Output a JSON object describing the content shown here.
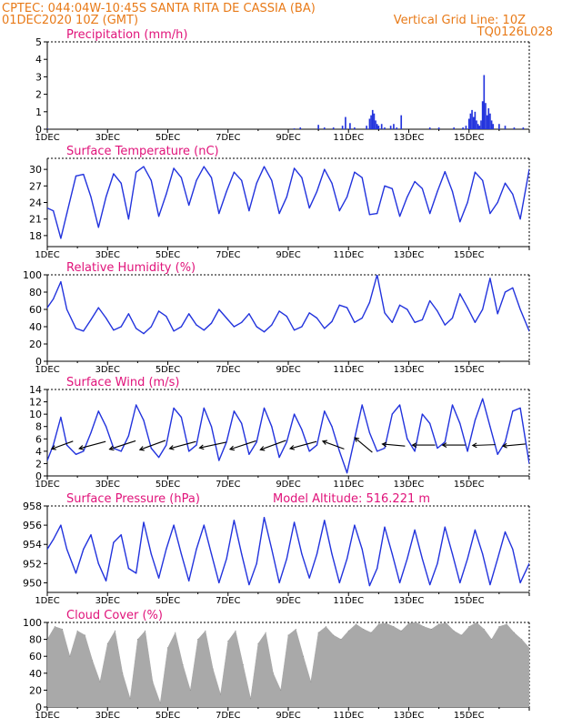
{
  "header": {
    "line1": "CPTEC:   044:04W-10:45S   SANTA RITA DE CASSIA (BA)",
    "line2_left": "01DEC2020 10Z (GMT)",
    "line2_right": "Vertical Grid Line: 10Z",
    "line3_right": "TQ0126L028"
  },
  "colors": {
    "header": "#e87a18",
    "panel_title": "#e0137a",
    "series": "#2233dd",
    "cloud_fill": "#a9a9a9",
    "wind_arrow": "#000000"
  },
  "chart_data": [
    {
      "type": "bar",
      "title": "Precipitation (mm/h)",
      "ylim": [
        0,
        5
      ],
      "yticks": [
        "0",
        "1",
        "2",
        "3",
        "4",
        "5"
      ],
      "x_ticks": [
        "1DEC",
        "3DEC",
        "5DEC",
        "7DEC",
        "9DEC",
        "11DEC",
        "13DEC",
        "15DEC"
      ],
      "x": [
        0.0,
        8.2,
        8.4,
        9.0,
        9.2,
        9.5,
        9.8,
        9.9,
        10.05,
        10.2,
        10.6,
        10.7,
        10.75,
        10.8,
        10.85,
        10.9,
        10.95,
        11.0,
        11.1,
        11.2,
        11.4,
        11.5,
        11.6,
        11.75,
        12.7,
        13.0,
        13.5,
        13.8,
        13.9,
        14.0,
        14.05,
        14.1,
        14.15,
        14.2,
        14.25,
        14.3,
        14.35,
        14.4,
        14.45,
        14.5,
        14.55,
        14.6,
        14.65,
        14.7,
        14.75,
        14.8,
        15.0,
        15.2,
        15.5,
        15.8
      ],
      "values": [
        0.05,
        0.05,
        0.1,
        0.25,
        0.1,
        0.1,
        0.2,
        0.7,
        0.35,
        0.1,
        0.2,
        0.6,
        0.8,
        1.1,
        0.9,
        0.5,
        0.3,
        0.2,
        0.3,
        0.1,
        0.2,
        0.3,
        0.1,
        0.8,
        0.1,
        0.1,
        0.1,
        0.1,
        0.2,
        0.6,
        0.9,
        1.1,
        0.7,
        1.0,
        0.5,
        0.3,
        0.2,
        0.5,
        1.6,
        3.1,
        1.5,
        0.8,
        1.2,
        0.9,
        0.5,
        0.3,
        0.3,
        0.2,
        0.1,
        0.1
      ]
    },
    {
      "type": "line",
      "title": "Surface Temperature (nC)",
      "ylim": [
        16,
        32
      ],
      "yticks": [
        "18",
        "21",
        "24",
        "27",
        "30"
      ],
      "x_ticks": [
        "1DEC",
        "3DEC",
        "5DEC",
        "7DEC",
        "9DEC",
        "11DEC",
        "13DEC",
        "15DEC"
      ],
      "x": [
        0.0,
        0.2,
        0.45,
        0.65,
        0.95,
        1.2,
        1.45,
        1.7,
        1.95,
        2.2,
        2.45,
        2.7,
        2.95,
        3.2,
        3.45,
        3.7,
        3.95,
        4.2,
        4.45,
        4.7,
        4.95,
        5.2,
        5.45,
        5.7,
        5.95,
        6.2,
        6.45,
        6.7,
        6.95,
        7.2,
        7.45,
        7.7,
        7.95,
        8.2,
        8.45,
        8.7,
        8.95,
        9.2,
        9.45,
        9.7,
        9.95,
        10.2,
        10.45,
        10.7,
        10.95,
        11.2,
        11.45,
        11.7,
        11.95,
        12.2,
        12.45,
        12.7,
        12.95,
        13.2,
        13.45,
        13.7,
        13.95,
        14.2,
        14.45,
        14.7,
        14.95,
        15.2,
        15.45,
        15.7,
        16.0
      ],
      "values": [
        23.0,
        22.5,
        17.5,
        22.0,
        28.8,
        29.1,
        25.0,
        19.5,
        25.0,
        29.2,
        27.5,
        21.0,
        29.5,
        30.5,
        28.0,
        21.5,
        25.5,
        30.2,
        28.5,
        23.5,
        28.0,
        30.5,
        28.5,
        22.0,
        26.0,
        29.5,
        28.0,
        22.5,
        27.5,
        30.5,
        28.0,
        22.0,
        25.0,
        30.2,
        28.5,
        23.0,
        26.0,
        30.0,
        27.5,
        22.5,
        25.0,
        29.5,
        28.5,
        21.8,
        22.0,
        27.0,
        26.5,
        21.5,
        25.0,
        27.8,
        26.5,
        22.0,
        26.0,
        29.6,
        26.0,
        20.5,
        24.0,
        29.5,
        28.0,
        22.0,
        24.0,
        27.5,
        25.5,
        21.0,
        30.0
      ]
    },
    {
      "type": "line",
      "title": "Relative Humidity (%)",
      "ylim": [
        0,
        100
      ],
      "yticks": [
        "0",
        "20",
        "40",
        "60",
        "80",
        "100"
      ],
      "x_ticks": [
        "1DEC",
        "3DEC",
        "5DEC",
        "7DEC",
        "9DEC",
        "11DEC",
        "13DEC",
        "15DEC"
      ],
      "x": [
        0.0,
        0.2,
        0.45,
        0.65,
        0.95,
        1.2,
        1.45,
        1.7,
        1.95,
        2.2,
        2.45,
        2.7,
        2.95,
        3.2,
        3.45,
        3.7,
        3.95,
        4.2,
        4.45,
        4.7,
        4.95,
        5.2,
        5.45,
        5.7,
        5.95,
        6.2,
        6.45,
        6.7,
        6.95,
        7.2,
        7.45,
        7.7,
        7.95,
        8.2,
        8.45,
        8.7,
        8.95,
        9.2,
        9.45,
        9.7,
        9.95,
        10.2,
        10.45,
        10.7,
        10.95,
        11.2,
        11.45,
        11.7,
        11.95,
        12.2,
        12.45,
        12.7,
        12.95,
        13.2,
        13.45,
        13.7,
        13.95,
        14.2,
        14.45,
        14.7,
        14.95,
        15.2,
        15.45,
        15.7,
        16.0
      ],
      "values": [
        62.0,
        72.0,
        92.0,
        60.0,
        38.0,
        35.0,
        48.0,
        62.0,
        50.0,
        36.0,
        40.0,
        55.0,
        38.0,
        32.0,
        40.0,
        58.0,
        52.0,
        35.0,
        40.0,
        55.0,
        42.0,
        36.0,
        44.0,
        60.0,
        50.0,
        40.0,
        45.0,
        55.0,
        40.0,
        34.0,
        42.0,
        58.0,
        52.0,
        36.0,
        40.0,
        56.0,
        50.0,
        38.0,
        46.0,
        65.0,
        62.0,
        45.0,
        50.0,
        68.0,
        100.0,
        56.0,
        45.0,
        65.0,
        60.0,
        45.0,
        48.0,
        70.0,
        58.0,
        42.0,
        50.0,
        78.0,
        62.0,
        45.0,
        60.0,
        96.0,
        55.0,
        80.0,
        85.0,
        60.0,
        35.0
      ]
    },
    {
      "type": "line",
      "title": "Surface Wind (m/s)",
      "ylim": [
        0,
        14
      ],
      "yticks": [
        "0",
        "2",
        "4",
        "6",
        "8",
        "10",
        "12",
        "14"
      ],
      "x_ticks": [
        "1DEC",
        "3DEC",
        "5DEC",
        "7DEC",
        "9DEC",
        "11DEC",
        "13DEC",
        "15DEC"
      ],
      "x": [
        0.0,
        0.2,
        0.45,
        0.65,
        0.95,
        1.2,
        1.45,
        1.7,
        1.95,
        2.2,
        2.45,
        2.7,
        2.95,
        3.2,
        3.45,
        3.7,
        3.95,
        4.2,
        4.45,
        4.7,
        4.95,
        5.2,
        5.45,
        5.7,
        5.95,
        6.2,
        6.45,
        6.7,
        6.95,
        7.2,
        7.45,
        7.7,
        7.95,
        8.2,
        8.45,
        8.7,
        8.95,
        9.2,
        9.45,
        9.7,
        9.95,
        10.2,
        10.45,
        10.7,
        10.95,
        11.2,
        11.45,
        11.7,
        11.95,
        12.2,
        12.45,
        12.7,
        12.95,
        13.2,
        13.45,
        13.7,
        13.95,
        14.2,
        14.45,
        14.7,
        14.95,
        15.2,
        15.45,
        15.7,
        16.0
      ],
      "values": [
        2.5,
        5.0,
        9.5,
        5.0,
        3.5,
        4.0,
        7.0,
        10.5,
        8.0,
        4.5,
        4.0,
        6.5,
        11.5,
        9.0,
        4.5,
        3.0,
        5.0,
        11.0,
        9.5,
        4.0,
        5.0,
        11.0,
        8.0,
        2.5,
        5.5,
        10.5,
        8.5,
        3.5,
        5.5,
        11.0,
        8.0,
        3.0,
        5.5,
        10.0,
        7.5,
        4.0,
        5.0,
        10.5,
        8.0,
        4.0,
        0.5,
        6.0,
        11.5,
        7.0,
        4.0,
        4.5,
        10.0,
        11.5,
        6.0,
        4.0,
        10.0,
        8.5,
        4.5,
        5.5,
        11.5,
        8.5,
        4.0,
        9.0,
        12.5,
        8.0,
        3.5,
        5.5,
        10.5,
        11.0,
        2.0
      ]
    },
    {
      "type": "line",
      "title": "Surface Pressure (hPa)",
      "subtitle": "Model Altitude: 516.221  m",
      "ylim": [
        949,
        958
      ],
      "yticks": [
        "950",
        "952",
        "954",
        "956",
        "958"
      ],
      "x_ticks": [
        "1DEC",
        "3DEC",
        "5DEC",
        "7DEC",
        "9DEC",
        "11DEC",
        "13DEC",
        "15DEC"
      ],
      "x": [
        0.0,
        0.2,
        0.45,
        0.65,
        0.95,
        1.2,
        1.45,
        1.7,
        1.95,
        2.2,
        2.45,
        2.7,
        2.95,
        3.2,
        3.45,
        3.7,
        3.95,
        4.2,
        4.45,
        4.7,
        4.95,
        5.2,
        5.45,
        5.7,
        5.95,
        6.2,
        6.45,
        6.7,
        6.95,
        7.2,
        7.45,
        7.7,
        7.95,
        8.2,
        8.45,
        8.7,
        8.95,
        9.2,
        9.45,
        9.7,
        9.95,
        10.2,
        10.45,
        10.7,
        10.95,
        11.2,
        11.45,
        11.7,
        11.95,
        12.2,
        12.45,
        12.7,
        12.95,
        13.2,
        13.45,
        13.7,
        13.95,
        14.2,
        14.45,
        14.7,
        14.95,
        15.2,
        15.45,
        15.7,
        16.0
      ],
      "values": [
        953.5,
        954.5,
        956.0,
        953.5,
        951.0,
        953.5,
        955.0,
        952.0,
        950.2,
        954.2,
        955.0,
        951.5,
        951.0,
        956.3,
        953.0,
        950.5,
        953.5,
        956.0,
        953.0,
        950.2,
        953.5,
        956.0,
        953.0,
        950.0,
        952.5,
        956.5,
        953.0,
        949.8,
        952.0,
        956.8,
        953.5,
        950.0,
        952.5,
        956.3,
        953.0,
        950.5,
        953.0,
        956.5,
        953.0,
        950.0,
        952.5,
        956.0,
        953.5,
        949.7,
        951.5,
        955.8,
        953.0,
        950.0,
        952.5,
        955.5,
        952.5,
        949.8,
        952.0,
        955.8,
        953.0,
        950.0,
        952.5,
        955.5,
        953.0,
        949.8,
        952.5,
        955.3,
        953.5,
        950.0,
        952.0
      ]
    },
    {
      "type": "area",
      "title": "Cloud Cover (%)",
      "ylim": [
        0,
        100
      ],
      "yticks": [
        "0",
        "20",
        "40",
        "60",
        "80",
        "100"
      ],
      "x_ticks": [
        "1DEC",
        "3DEC",
        "5DEC",
        "7DEC",
        "9DEC",
        "11DEC",
        "13DEC",
        "15DEC"
      ],
      "x": [
        0.0,
        0.25,
        0.5,
        0.75,
        1.0,
        1.25,
        1.5,
        1.75,
        2.0,
        2.25,
        2.5,
        2.75,
        3.0,
        3.25,
        3.5,
        3.75,
        4.0,
        4.25,
        4.5,
        4.75,
        5.0,
        5.25,
        5.5,
        5.75,
        6.0,
        6.25,
        6.5,
        6.75,
        7.0,
        7.25,
        7.5,
        7.75,
        8.0,
        8.25,
        8.5,
        8.75,
        9.0,
        9.25,
        9.5,
        9.75,
        10.0,
        10.25,
        10.5,
        10.75,
        11.0,
        11.25,
        11.5,
        11.75,
        12.0,
        12.25,
        12.5,
        12.75,
        13.0,
        13.25,
        13.5,
        13.75,
        14.0,
        14.25,
        14.5,
        14.75,
        15.0,
        15.25,
        15.5,
        15.75,
        16.0
      ],
      "values": [
        80,
        95,
        92,
        60,
        90,
        85,
        55,
        30,
        75,
        90,
        40,
        10,
        80,
        90,
        30,
        5,
        70,
        88,
        50,
        20,
        80,
        90,
        45,
        15,
        78,
        90,
        50,
        10,
        75,
        88,
        40,
        20,
        85,
        92,
        60,
        30,
        88,
        95,
        85,
        80,
        90,
        98,
        92,
        88,
        98,
        99,
        95,
        90,
        99,
        100,
        95,
        92,
        98,
        99,
        90,
        85,
        95,
        100,
        92,
        80,
        95,
        98,
        88,
        80,
        70
      ]
    }
  ],
  "wind_arrows": {
    "x": [
      0.5,
      1.5,
      2.5,
      3.5,
      4.5,
      5.5,
      6.5,
      7.5,
      8.5,
      9.5,
      10.5,
      11.5,
      12.5,
      13.5,
      14.5,
      15.5
    ],
    "y": [
      5.0,
      5.0,
      5.0,
      5.0,
      5.0,
      5.0,
      5.0,
      5.0,
      5.0,
      5.0,
      5.0,
      5.0,
      5.0,
      5.0,
      5.0,
      5.0
    ],
    "direction_deg": [
      70,
      75,
      72,
      70,
      75,
      78,
      72,
      70,
      75,
      110,
      130,
      95,
      90,
      90,
      88,
      85
    ],
    "speed": [
      3,
      4,
      4,
      4,
      4,
      4,
      4,
      4,
      4,
      3,
      3,
      3,
      3,
      3,
      3,
      3
    ]
  }
}
